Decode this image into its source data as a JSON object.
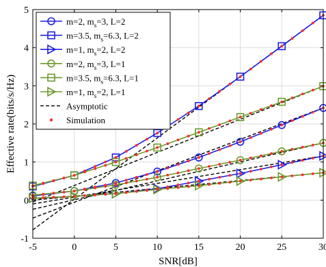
{
  "chart_data": {
    "type": "line",
    "xlabel": "SNR[dB]",
    "ylabel": "Effective rate(bits/s/Hz)",
    "xlim": [
      -5,
      30
    ],
    "ylim": [
      -1,
      5
    ],
    "xticks": [
      -5,
      0,
      5,
      10,
      15,
      20,
      25,
      30
    ],
    "yticks": [
      -1,
      0,
      1,
      2,
      3,
      4,
      5
    ],
    "x": [
      -5,
      0,
      5,
      10,
      15,
      20,
      25,
      30
    ],
    "legend_position": "top-left",
    "series": [
      {
        "name": "m=2, m_s=3, L=2",
        "name_parts": [
          "m=2, m",
          "s",
          "=3, L=2"
        ],
        "color": "#1f1fe0",
        "marker": "circle",
        "values": [
          0.11,
          0.24,
          0.45,
          0.75,
          1.12,
          1.53,
          1.97,
          2.42
        ],
        "asymptote": [
          [
            -5,
            -0.47
          ],
          [
            30,
            2.42
          ]
        ]
      },
      {
        "name": "m=3.5, m_s=6.3, L=2",
        "name_parts": [
          "m=3.5, m",
          "s",
          "=6.3, L=2"
        ],
        "color": "#1f1fe0",
        "marker": "square",
        "values": [
          0.36,
          0.65,
          1.12,
          1.76,
          2.47,
          3.24,
          4.04,
          4.85
        ],
        "asymptote": [
          [
            -5,
            -0.78
          ],
          [
            30,
            4.85
          ]
        ]
      },
      {
        "name": "m=1, m_s=2, L=2",
        "name_parts": [
          "m=1, m",
          "s",
          "=2, L=2"
        ],
        "color": "#1f1fe0",
        "marker": "triangle-right",
        "values": [
          0.05,
          0.1,
          0.17,
          0.3,
          0.5,
          0.7,
          0.93,
          1.16
        ],
        "asymptote": [
          [
            -5,
            -0.1
          ],
          [
            30,
            1.16
          ]
        ]
      },
      {
        "name": "m=2, m_s=3, L=1",
        "name_parts": [
          "m=2, m",
          "s",
          "=3, L=1"
        ],
        "color": "#6e9a2c",
        "marker": "circle",
        "values": [
          0.13,
          0.24,
          0.4,
          0.6,
          0.83,
          1.05,
          1.28,
          1.5
        ],
        "asymptote": [
          [
            -5,
            -0.24
          ],
          [
            30,
            1.5
          ]
        ]
      },
      {
        "name": "m=3.5, m_s=6.3, L=1",
        "name_parts": [
          "m=3.5, m",
          "s",
          "=6.3, L=1"
        ],
        "color": "#6e9a2c",
        "marker": "square",
        "values": [
          0.38,
          0.65,
          1.0,
          1.38,
          1.78,
          2.18,
          2.58,
          2.99
        ],
        "asymptote": [
          [
            -5,
            -0.05
          ],
          [
            30,
            2.99
          ]
        ]
      },
      {
        "name": "m=1, m_s=2, L=1",
        "name_parts": [
          "m=1, m",
          "s",
          "=2, L=1"
        ],
        "color": "#6e9a2c",
        "marker": "triangle-right",
        "values": [
          0.05,
          0.1,
          0.17,
          0.28,
          0.38,
          0.5,
          0.61,
          0.72
        ],
        "asymptote": [
          [
            -5,
            0.0
          ],
          [
            30,
            0.72
          ]
        ]
      }
    ],
    "asymptotic": {
      "name": "Asymptotic",
      "color": "#000000",
      "style": "dashed"
    },
    "simulation": {
      "name": "Simulation",
      "color": "#ff2a2a",
      "marker": "dot"
    }
  }
}
